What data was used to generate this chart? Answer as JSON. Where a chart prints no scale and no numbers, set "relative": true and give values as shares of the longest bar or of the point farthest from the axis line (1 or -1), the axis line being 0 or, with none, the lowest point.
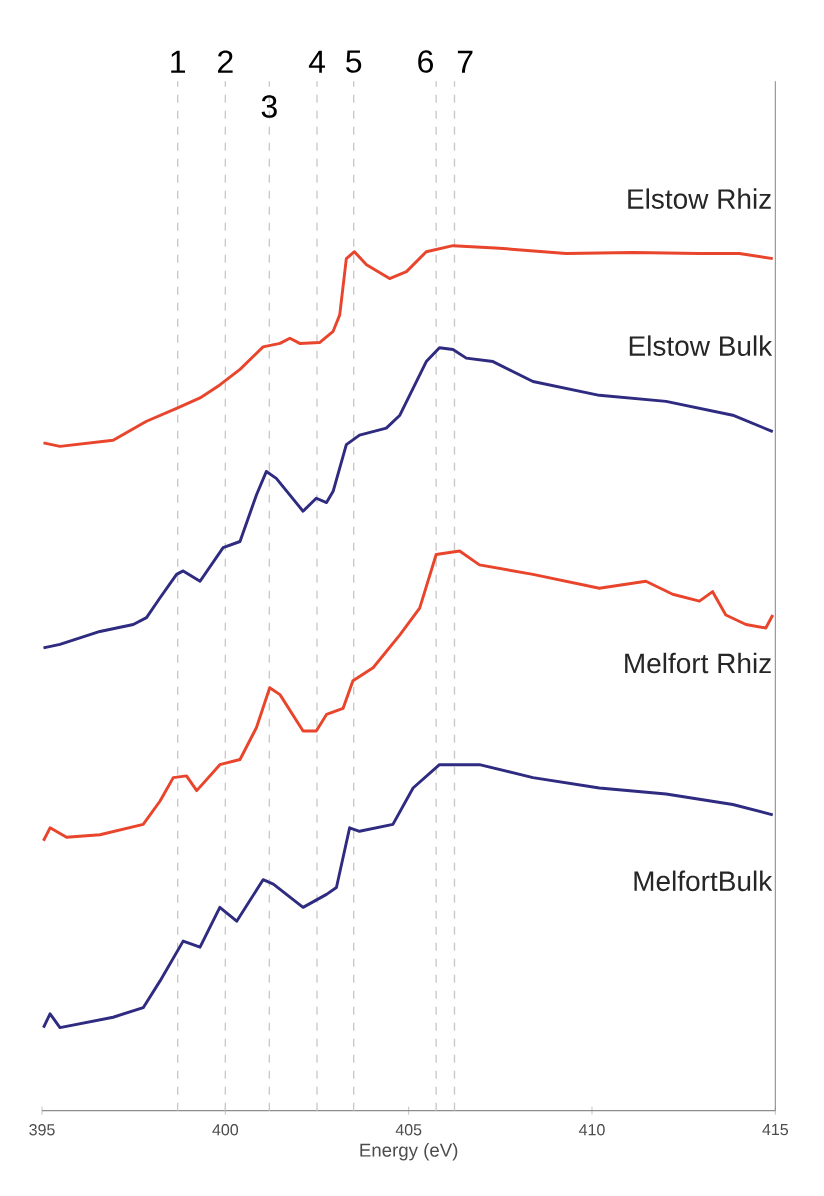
{
  "chart_data": {
    "type": "line",
    "relative": true,
    "xlabel": "Energy (eV)",
    "xlim": [
      395,
      415
    ],
    "xticks": [
      395,
      400,
      405,
      410,
      415
    ],
    "line_style": "solid",
    "series": [
      {
        "name": "Elstow Rhiz",
        "color": "#e8452c",
        "x": [
          395.04,
          395.49,
          396.94,
          397.85,
          398.67,
          399.31,
          399.85,
          400.4,
          401.03,
          401.49,
          401.76,
          402.03,
          402.57,
          402.94,
          403.12,
          403.3,
          403.52,
          403.85,
          404.48,
          404.94,
          405.48,
          406.21,
          407.48,
          409.29,
          411.11,
          412.93,
          414.02,
          414.93
        ],
        "values": [
          0.772,
          0.768,
          0.775,
          0.797,
          0.812,
          0.824,
          0.839,
          0.857,
          0.883,
          0.887,
          0.893,
          0.887,
          0.888,
          0.901,
          0.92,
          0.985,
          0.993,
          0.978,
          0.962,
          0.97,
          0.993,
          1.0,
          0.997,
          0.991,
          0.992,
          0.991,
          0.991,
          0.985
        ]
      },
      {
        "name": "Elstow Bulk",
        "color": "#2e2b80",
        "x": [
          395.04,
          395.49,
          396.58,
          397.49,
          397.85,
          398.22,
          398.67,
          398.85,
          399.31,
          399.94,
          400.4,
          400.85,
          401.12,
          401.39,
          402.12,
          402.48,
          402.76,
          402.94,
          403.3,
          403.66,
          404.39,
          404.76,
          405.48,
          405.84,
          406.21,
          406.57,
          407.3,
          408.39,
          410.2,
          412.02,
          413.84,
          414.93
        ],
        "values": [
          0.535,
          0.539,
          0.554,
          0.562,
          0.57,
          0.593,
          0.62,
          0.624,
          0.612,
          0.651,
          0.658,
          0.712,
          0.739,
          0.731,
          0.693,
          0.708,
          0.703,
          0.716,
          0.77,
          0.781,
          0.789,
          0.804,
          0.866,
          0.882,
          0.88,
          0.87,
          0.866,
          0.843,
          0.827,
          0.82,
          0.804,
          0.785
        ]
      },
      {
        "name": "Melfort Rhiz",
        "color": "#e8452c",
        "x": [
          395.04,
          395.22,
          395.67,
          396.58,
          397.76,
          398.22,
          398.58,
          398.94,
          399.22,
          399.85,
          400.4,
          400.85,
          401.21,
          401.49,
          402.12,
          402.48,
          402.76,
          403.21,
          403.48,
          404.03,
          404.76,
          405.3,
          405.75,
          406.39,
          406.93,
          408.39,
          410.2,
          411.47,
          412.2,
          412.93,
          413.29,
          413.65,
          414.2,
          414.74,
          414.93
        ],
        "values": [
          0.312,
          0.327,
          0.316,
          0.319,
          0.331,
          0.358,
          0.385,
          0.387,
          0.37,
          0.4,
          0.406,
          0.443,
          0.489,
          0.481,
          0.439,
          0.439,
          0.458,
          0.465,
          0.497,
          0.512,
          0.55,
          0.581,
          0.643,
          0.647,
          0.631,
          0.62,
          0.604,
          0.612,
          0.597,
          0.589,
          0.6,
          0.573,
          0.562,
          0.558,
          0.573
        ]
      },
      {
        "name": "MelfortBulk",
        "color": "#2e2b80",
        "x": [
          395.04,
          395.22,
          395.49,
          396.94,
          397.76,
          398.22,
          398.85,
          399.31,
          399.85,
          400.31,
          401.03,
          401.31,
          402.12,
          402.76,
          403.03,
          403.39,
          403.66,
          404.57,
          405.12,
          405.84,
          406.93,
          408.39,
          410.2,
          412.02,
          413.84,
          414.93
        ],
        "values": [
          0.096,
          0.112,
          0.096,
          0.108,
          0.119,
          0.15,
          0.196,
          0.189,
          0.235,
          0.219,
          0.267,
          0.262,
          0.235,
          0.25,
          0.258,
          0.327,
          0.323,
          0.331,
          0.373,
          0.4,
          0.4,
          0.385,
          0.373,
          0.366,
          0.354,
          0.342
        ]
      }
    ],
    "ref_lines": [
      {
        "axis": "x",
        "value": 398.7,
        "color": "#c8c8c8",
        "line_style": "dashed"
      },
      {
        "axis": "x",
        "value": 400.0,
        "color": "#c8c8c8",
        "line_style": "dashed"
      },
      {
        "axis": "x",
        "value": 401.2,
        "color": "#c8c8c8",
        "line_style": "dashed"
      },
      {
        "axis": "x",
        "value": 402.5,
        "color": "#c8c8c8",
        "line_style": "dashed"
      },
      {
        "axis": "x",
        "value": 403.5,
        "color": "#c8c8c8",
        "line_style": "dashed"
      },
      {
        "axis": "x",
        "value": 405.75,
        "color": "#c8c8c8",
        "line_style": "dashed"
      },
      {
        "axis": "x",
        "value": 406.25,
        "color": "#c8c8c8",
        "line_style": "dashed"
      }
    ],
    "annotations": [
      "1",
      "2",
      "3",
      "4",
      "5",
      "6",
      "7"
    ]
  }
}
